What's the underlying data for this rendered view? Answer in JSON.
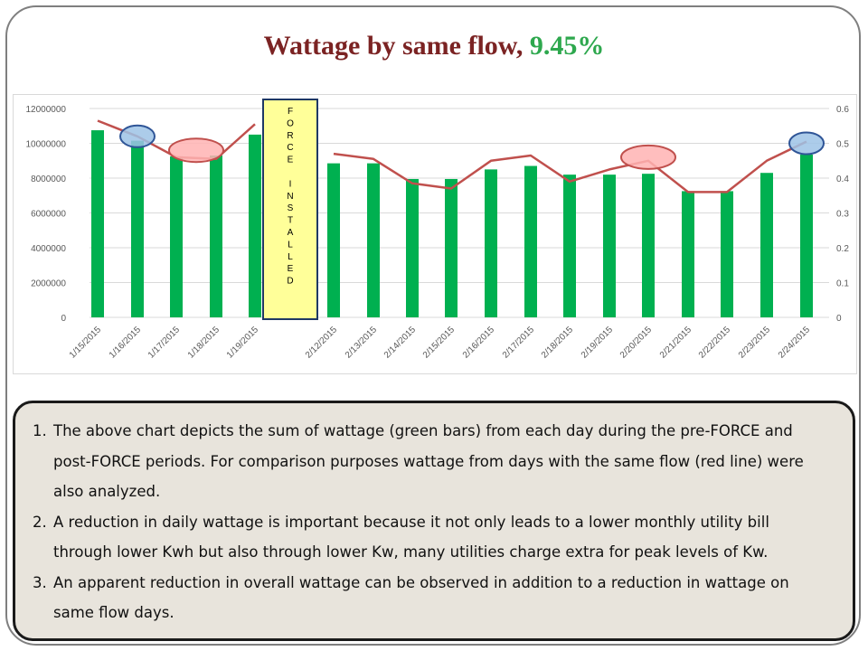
{
  "title": {
    "text": "Wattage by same flow, ",
    "highlight": "9.45%",
    "highlight_color": "#2ea84e",
    "color": "#7b2323"
  },
  "chart_data": {
    "type": "bar",
    "title": "",
    "xlabel": "",
    "ylabel": "",
    "categories": [
      "1/15/2015",
      "1/16/2015",
      "1/17/2015",
      "1/18/2015",
      "1/19/2015",
      "2/12/2015",
      "2/13/2015",
      "2/14/2015",
      "2/15/2015",
      "2/16/2015",
      "2/17/2015",
      "2/18/2015",
      "2/19/2015",
      "2/20/2015",
      "2/21/2015",
      "2/22/2015",
      "2/23/2015",
      "2/24/2015"
    ],
    "series": [
      {
        "type": "bar",
        "axis": "left",
        "color": "#00b050",
        "values": [
          10750000,
          10150000,
          9250000,
          9300000,
          10500000,
          8850000,
          8850000,
          7950000,
          7950000,
          8500000,
          8700000,
          8200000,
          8200000,
          8250000,
          7250000,
          7250000,
          8300000,
          9350000
        ]
      },
      {
        "type": "line",
        "axis": "right",
        "color": "#c0504d",
        "values": [
          0.565,
          0.52,
          0.46,
          0.455,
          0.555,
          0.47,
          0.455,
          0.385,
          0.37,
          0.45,
          0.465,
          0.39,
          0.425,
          0.45,
          0.36,
          0.36,
          0.45,
          0.505
        ]
      }
    ],
    "ylim": [
      0,
      12000000
    ],
    "y_ticks": [
      "0",
      "2000000",
      "4000000",
      "6000000",
      "8000000",
      "10000000",
      "12000000"
    ],
    "y2lim": [
      0,
      0.6
    ],
    "y2_ticks": [
      "0",
      "0.1",
      "0.2",
      "0.3",
      "0.4",
      "0.5",
      "0.6"
    ],
    "grid": true,
    "annotation": {
      "label": "FORCE INSTALLED",
      "letters": [
        "F",
        "O",
        "R",
        "C",
        "E",
        "",
        "I",
        "N",
        "S",
        "T",
        "A",
        "L",
        "L",
        "E",
        "D"
      ],
      "between": [
        "1/19/2015",
        "2/12/2015"
      ],
      "fill": "#ffff99",
      "border": "#1f3864"
    },
    "highlights": [
      {
        "category_index": 1,
        "value": 0.52,
        "axis": "right",
        "color": "blue"
      },
      {
        "category_index": 2.5,
        "value": 0.48,
        "axis": "right",
        "color": "red"
      },
      {
        "category_index": 13,
        "value": 0.46,
        "axis": "right",
        "color": "red"
      },
      {
        "category_index": 17,
        "value": 0.5,
        "axis": "right",
        "color": "blue"
      }
    ]
  },
  "notes": [
    "The above chart depicts the sum of wattage (green bars) from each day during the pre-FORCE and post-FORCE periods. For comparison purposes wattage from days with the same flow (red line) were also analyzed.",
    "A reduction in daily wattage is important because it not only leads to a lower monthly utility bill through lower Kwh but also through lower Kw, many utilities charge extra for peak levels of Kw.",
    "An apparent reduction in overall wattage can be observed in addition to a reduction in wattage on same flow days."
  ]
}
